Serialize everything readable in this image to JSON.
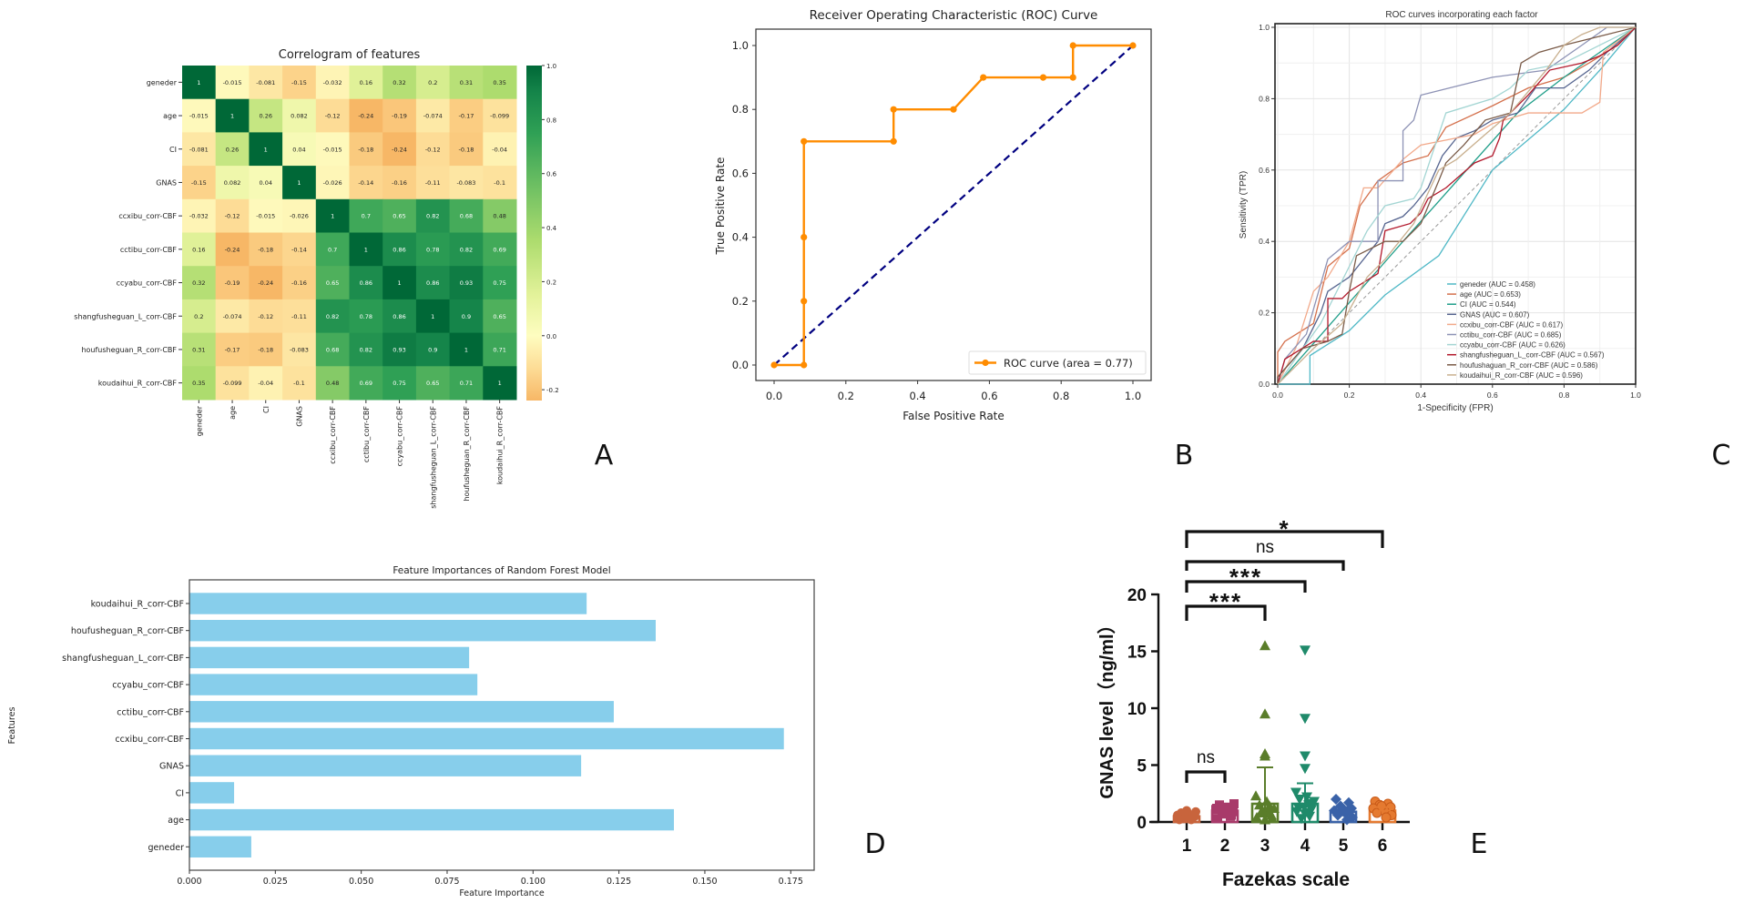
{
  "panel_labels": [
    "A",
    "B",
    "C",
    "D",
    "E"
  ],
  "chart_data": [
    {
      "type": "heatmap",
      "title": "Correlogram of features",
      "labels": [
        "geneder",
        "age",
        "CI",
        "GNAS",
        "ccxibu_corr-CBF",
        "cctibu_corr-CBF",
        "ccyabu_corr-CBF",
        "shangfusheguan_L_corr-CBF",
        "houfusheguan_R_corr-CBF",
        "koudaihui_R_corr-CBF"
      ],
      "matrix": [
        [
          1,
          -0.015,
          -0.081,
          -0.15,
          -0.032,
          0.16,
          0.32,
          0.2,
          0.31,
          0.35
        ],
        [
          -0.015,
          1,
          0.26,
          0.082,
          -0.12,
          -0.24,
          -0.19,
          -0.074,
          -0.17,
          -0.099
        ],
        [
          -0.081,
          0.26,
          1,
          0.04,
          -0.015,
          -0.18,
          -0.24,
          -0.12,
          -0.18,
          -0.04
        ],
        [
          -0.15,
          0.082,
          0.04,
          1,
          -0.026,
          -0.14,
          -0.16,
          -0.11,
          -0.083,
          -0.1
        ],
        [
          -0.032,
          -0.12,
          -0.015,
          -0.026,
          1,
          0.7,
          0.65,
          0.82,
          0.68,
          0.48
        ],
        [
          0.16,
          -0.24,
          -0.18,
          -0.14,
          0.7,
          1,
          0.86,
          0.78,
          0.82,
          0.69
        ],
        [
          0.32,
          -0.19,
          -0.24,
          -0.16,
          0.65,
          0.86,
          1,
          0.86,
          0.93,
          0.75
        ],
        [
          0.2,
          -0.074,
          -0.12,
          -0.11,
          0.82,
          0.78,
          0.86,
          1,
          0.9,
          0.65
        ],
        [
          0.31,
          -0.17,
          -0.18,
          -0.083,
          0.68,
          0.82,
          0.93,
          0.9,
          1,
          0.71
        ],
        [
          0.35,
          -0.099,
          -0.04,
          -0.1,
          0.48,
          0.69,
          0.75,
          0.65,
          0.71,
          1
        ]
      ],
      "colormap": "RdYlGn",
      "colorbar_range": [
        -0.24,
        1.0
      ],
      "colorbar_ticks": [
        {
          "value": 1.0,
          "label": "1.0"
        },
        {
          "value": 0.8,
          "label": "0.8"
        },
        {
          "value": 0.6,
          "label": "0.6"
        },
        {
          "value": 0.4,
          "label": "0.4"
        },
        {
          "value": 0.2,
          "label": "0.2"
        },
        {
          "value": 0.0,
          "label": "0.0"
        },
        {
          "value": -0.2,
          "label": "-0.2"
        }
      ]
    },
    {
      "type": "line",
      "title": "Receiver Operating Characteristic (ROC) Curve",
      "xlabel": "False Positive Rate",
      "ylabel": "True Positive Rate",
      "xlim": [
        -0.05,
        1.05
      ],
      "ylim": [
        -0.05,
        1.05
      ],
      "xticks": [
        "0.0",
        "0.2",
        "0.4",
        "0.6",
        "0.8",
        "1.0"
      ],
      "yticks": [
        "0.0",
        "0.2",
        "0.4",
        "0.6",
        "0.8",
        "1.0"
      ],
      "series": [
        {
          "name": "ROC curve (area = 0.77)",
          "color": "#ff8c00",
          "marker": "o",
          "x": [
            0,
            0.083,
            0.083,
            0.083,
            0.083,
            0.333,
            0.333,
            0.5,
            0.583,
            0.75,
            0.833,
            0.833,
            1.0
          ],
          "y": [
            0,
            0,
            0.2,
            0.4,
            0.7,
            0.7,
            0.8,
            0.8,
            0.9,
            0.9,
            0.9,
            1.0,
            1.0
          ]
        }
      ],
      "reference_line": {
        "x": [
          0,
          1
        ],
        "y": [
          0,
          1
        ],
        "color": "#000080",
        "style": "dashed"
      },
      "legend": "bottom-right",
      "grid": false
    },
    {
      "type": "line",
      "title": "ROC curves incorporating each factor",
      "xlabel": "1-Specificity (FPR)",
      "ylabel": "Sensitivity (TPR)",
      "xlim": [
        0,
        1
      ],
      "ylim": [
        0,
        1
      ],
      "xticks": [
        "0.0",
        "0.2",
        "0.4",
        "0.6",
        "0.8",
        "1.0"
      ],
      "yticks": [
        "0.0",
        "0.2",
        "0.4",
        "0.6",
        "0.8",
        "1.0"
      ],
      "grid": true,
      "legend": "bottom-right",
      "series": [
        {
          "name": "geneder (AUC = 0.458)",
          "color": "#4fb8c6",
          "x": [
            0,
            0.09,
            0.09,
            0.2,
            0.3,
            0.45,
            0.6,
            0.8,
            0.9,
            1
          ],
          "y": [
            0,
            0,
            0.08,
            0.15,
            0.25,
            0.36,
            0.6,
            0.77,
            0.88,
            1
          ]
        },
        {
          "name": "age (AUC = 0.653)",
          "color": "#d4704c",
          "x": [
            0,
            0,
            0.02,
            0.1,
            0.14,
            0.2,
            0.23,
            0.28,
            0.35,
            0.42,
            0.47,
            0.6,
            0.7,
            0.8,
            0.87,
            0.95,
            1
          ],
          "y": [
            0,
            0.09,
            0.12,
            0.17,
            0.33,
            0.38,
            0.5,
            0.57,
            0.62,
            0.64,
            0.72,
            0.78,
            0.83,
            0.86,
            0.9,
            0.95,
            1
          ]
        },
        {
          "name": "CI (AUC = 0.544)",
          "color": "#1f9e89",
          "x": [
            0,
            0.35,
            0.67,
            0.8,
            1
          ],
          "y": [
            0,
            0.4,
            0.76,
            0.86,
            1
          ]
        },
        {
          "name": "GNAS (AUC = 0.607)",
          "color": "#55648f",
          "x": [
            0,
            0,
            0.07,
            0.12,
            0.14,
            0.2,
            0.28,
            0.3,
            0.35,
            0.38,
            0.42,
            0.46,
            0.5,
            0.55,
            0.6,
            0.67,
            0.72,
            0.8,
            0.87,
            0.92,
            1
          ],
          "y": [
            0,
            0.02,
            0.1,
            0.2,
            0.26,
            0.3,
            0.4,
            0.45,
            0.47,
            0.5,
            0.55,
            0.64,
            0.69,
            0.71,
            0.74,
            0.76,
            0.83,
            0.83,
            0.88,
            0.93,
            1
          ]
        },
        {
          "name": "ccxibu_corr-CBF (AUC = 0.617)",
          "color": "#f2a98a",
          "x": [
            0,
            0.05,
            0.1,
            0.14,
            0.2,
            0.24,
            0.28,
            0.35,
            0.4,
            0.55,
            0.6,
            0.7,
            0.85,
            0.9,
            0.91,
            1
          ],
          "y": [
            0,
            0.1,
            0.26,
            0.3,
            0.4,
            0.55,
            0.55,
            0.63,
            0.67,
            0.7,
            0.73,
            0.76,
            0.76,
            0.79,
            0.93,
            1
          ]
        },
        {
          "name": "cctibu_corr-CBF (AUC = 0.685)",
          "color": "#8d92b5",
          "x": [
            0,
            0.02,
            0.08,
            0.14,
            0.2,
            0.28,
            0.28,
            0.35,
            0.35,
            0.38,
            0.4,
            0.48,
            0.6,
            0.75,
            0.85,
            0.92,
            1
          ],
          "y": [
            0,
            0.07,
            0.14,
            0.35,
            0.4,
            0.4,
            0.57,
            0.57,
            0.71,
            0.74,
            0.81,
            0.83,
            0.86,
            0.88,
            0.95,
            1,
            1
          ]
        },
        {
          "name": "ccyabu_corr-CBF (AUC = 0.626)",
          "color": "#a3d5d3",
          "x": [
            0,
            0.07,
            0.12,
            0.2,
            0.25,
            0.3,
            0.38,
            0.4,
            0.47,
            0.6,
            0.65,
            0.7,
            0.8,
            0.9,
            1
          ],
          "y": [
            0,
            0.1,
            0.17,
            0.33,
            0.43,
            0.5,
            0.52,
            0.55,
            0.76,
            0.8,
            0.83,
            0.88,
            0.9,
            0.95,
            1
          ]
        },
        {
          "name": "shangfusheguan_L_corr-CBF (AUC = 0.567)",
          "color": "#b2182b",
          "x": [
            0,
            0.02,
            0.1,
            0.14,
            0.14,
            0.18,
            0.2,
            0.28,
            0.3,
            0.37,
            0.4,
            0.42,
            0.47,
            0.55,
            0.6,
            0.62,
            0.63,
            0.7,
            0.76,
            0.85,
            0.9,
            0.95,
            1
          ],
          "y": [
            0,
            0.07,
            0.12,
            0.12,
            0.24,
            0.24,
            0.26,
            0.31,
            0.43,
            0.45,
            0.48,
            0.52,
            0.55,
            0.62,
            0.64,
            0.69,
            0.74,
            0.81,
            0.88,
            0.9,
            0.92,
            0.95,
            1
          ]
        },
        {
          "name": "houfushaguan_R_corr-CBF (AUC = 0.586)",
          "color": "#7a5b48",
          "x": [
            0,
            0,
            0.07,
            0.14,
            0.18,
            0.2,
            0.22,
            0.3,
            0.35,
            0.4,
            0.45,
            0.47,
            0.52,
            0.58,
            0.65,
            0.68,
            0.73,
            0.8,
            0.92,
            1
          ],
          "y": [
            0,
            0.02,
            0.1,
            0.12,
            0.14,
            0.26,
            0.36,
            0.4,
            0.4,
            0.45,
            0.57,
            0.62,
            0.67,
            0.74,
            0.76,
            0.9,
            0.93,
            0.95,
            0.98,
            1
          ]
        },
        {
          "name": "koudaihui_R_corr-CBF (AUC = 0.596)",
          "color": "#c9b08f",
          "x": [
            0,
            0.05,
            0.1,
            0.18,
            0.25,
            0.3,
            0.38,
            0.45,
            0.5,
            0.58,
            0.65,
            0.75,
            0.8,
            0.85,
            0.9,
            1
          ],
          "y": [
            0,
            0.05,
            0.1,
            0.17,
            0.3,
            0.35,
            0.45,
            0.6,
            0.63,
            0.7,
            0.76,
            0.88,
            0.95,
            0.98,
            1,
            1
          ]
        }
      ],
      "reference_line": {
        "x": [
          0,
          1
        ],
        "y": [
          0,
          1
        ],
        "color": "#999999",
        "style": "dashed"
      }
    },
    {
      "type": "bar",
      "orientation": "horizontal",
      "title": "Feature Importances of Random Forest Model",
      "xlabel": "Feature Importance",
      "ylabel": "Features",
      "categories": [
        "geneder",
        "age",
        "CI",
        "GNAS",
        "ccxibu_corr-CBF",
        "cctibu_corr-CBF",
        "ccyabu_corr-CBF",
        "shangfusheguan_L_corr-CBF",
        "houfusheguan_R_corr-CBF",
        "koudaihui_R_corr-CBF"
      ],
      "values": [
        0.018,
        0.141,
        0.013,
        0.114,
        0.173,
        0.1235,
        0.0838,
        0.0814,
        0.1357,
        0.1156
      ],
      "xlim": [
        0,
        0.182
      ],
      "xticks": [
        {
          "value": 0,
          "label": "0.000"
        },
        {
          "value": 0.025,
          "label": "0.025"
        },
        {
          "value": 0.05,
          "label": "0.050"
        },
        {
          "value": 0.075,
          "label": "0.075"
        },
        {
          "value": 0.1,
          "label": "0.100"
        },
        {
          "value": 0.125,
          "label": "0.125"
        },
        {
          "value": 0.15,
          "label": "0.150"
        },
        {
          "value": 0.175,
          "label": "0.175"
        }
      ],
      "color": "#87ceeb"
    },
    {
      "type": "bar",
      "subtype": "bar-with-scatter",
      "xlabel": "Fazekas scale",
      "ylabel": "GNAS level（ng/ml）",
      "categories": [
        "1",
        "2",
        "3",
        "4",
        "5",
        "6"
      ],
      "ylim": [
        0,
        20
      ],
      "yticks": [
        "0",
        "5",
        "10",
        "15",
        "20"
      ],
      "groups": [
        {
          "category": "1",
          "mean": 0.5,
          "error_upper": 0.8,
          "color": "#c8643c",
          "marker": "circle",
          "points": [
            0.2,
            0.3,
            0.4,
            0.5,
            0.6,
            0.7,
            0.8,
            0.9,
            0.5,
            0.4,
            0.6,
            0.3,
            1.0,
            0.2
          ]
        },
        {
          "category": "2",
          "mean": 1.0,
          "error_upper": 1.3,
          "color": "#a83a6a",
          "marker": "square",
          "points": [
            0.3,
            0.5,
            0.7,
            0.9,
            1.1,
            1.3,
            1.5,
            1.6,
            0.8,
            1.0,
            0.6,
            1.2
          ]
        },
        {
          "category": "3",
          "mean": 1.6,
          "error_upper": 4.8,
          "color": "#5a7d2a",
          "marker": "triangle-up",
          "points": [
            15.5,
            9.5,
            6.0,
            5.8,
            2.3,
            1.8,
            1.5,
            1.2,
            1.0,
            0.8,
            0.6,
            0.4,
            0.2,
            1.4,
            0.9,
            0.3
          ]
        },
        {
          "category": "4",
          "mean": 1.6,
          "error_upper": 3.4,
          "color": "#1f8a6a",
          "marker": "triangle-down",
          "points": [
            15.1,
            9.1,
            5.8,
            4.7,
            2.6,
            2.2,
            2.0,
            1.8,
            1.5,
            1.3,
            1.1,
            0.9,
            0.7,
            0.5,
            0.3,
            1.6,
            1.2,
            0.8
          ]
        },
        {
          "category": "5",
          "mean": 0.9,
          "error_upper": 1.3,
          "color": "#3a62a8",
          "marker": "diamond",
          "points": [
            2.0,
            1.7,
            1.4,
            1.2,
            1.0,
            0.8,
            0.6,
            0.4,
            0.2,
            1.1,
            0.9
          ]
        },
        {
          "category": "6",
          "mean": 1.0,
          "error_upper": 1.3,
          "color": "#e57a30",
          "marker": "circle",
          "points": [
            1.8,
            1.6,
            1.5,
            1.3,
            1.2,
            1.0,
            0.8,
            0.6,
            0.4,
            1.4
          ]
        }
      ],
      "comparisons": [
        {
          "from": "1",
          "to": "2",
          "label": "ns"
        },
        {
          "from": "1",
          "to": "3",
          "label": "***"
        },
        {
          "from": "1",
          "to": "4",
          "label": "***"
        },
        {
          "from": "1",
          "to": "5",
          "label": "ns"
        },
        {
          "from": "1",
          "to": "6",
          "label": "*"
        }
      ]
    }
  ]
}
